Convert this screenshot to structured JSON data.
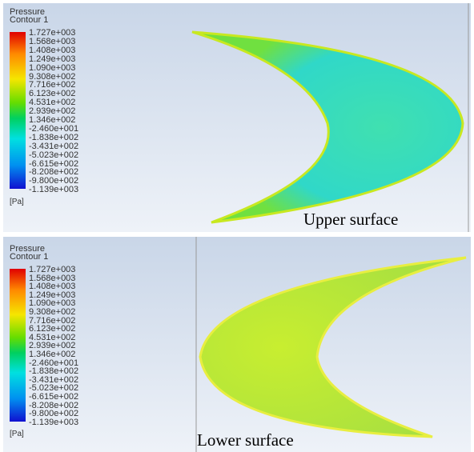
{
  "panels": [
    {
      "legend_title": [
        "Pressure",
        "Contour 1"
      ],
      "levels": [
        "1.727e+003",
        "1.568e+003",
        "1.408e+003",
        "1.249e+003",
        "1.090e+003",
        "9.308e+002",
        "7.716e+002",
        "6.123e+002",
        "4.531e+002",
        "2.939e+002",
        "1.346e+002",
        "-2.460e+001",
        "-1.838e+002",
        "-3.431e+002",
        "-5.023e+002",
        "-6.615e+002",
        "-8.208e+002",
        "-9.800e+002",
        "-1.139e+003"
      ],
      "unit": "[Pa]",
      "caption": "Upper surface"
    },
    {
      "legend_title": [
        "Pressure",
        "Contour 1"
      ],
      "levels": [
        "1.727e+003",
        "1.568e+003",
        "1.408e+003",
        "1.249e+003",
        "1.090e+003",
        "9.308e+002",
        "7.716e+002",
        "6.123e+002",
        "4.531e+002",
        "2.939e+002",
        "1.346e+002",
        "-2.460e+001",
        "-1.838e+002",
        "-3.431e+002",
        "-5.023e+002",
        "-6.615e+002",
        "-8.208e+002",
        "-9.800e+002",
        "-1.139e+003"
      ],
      "unit": "[Pa]",
      "caption": "Lower surface"
    }
  ]
}
